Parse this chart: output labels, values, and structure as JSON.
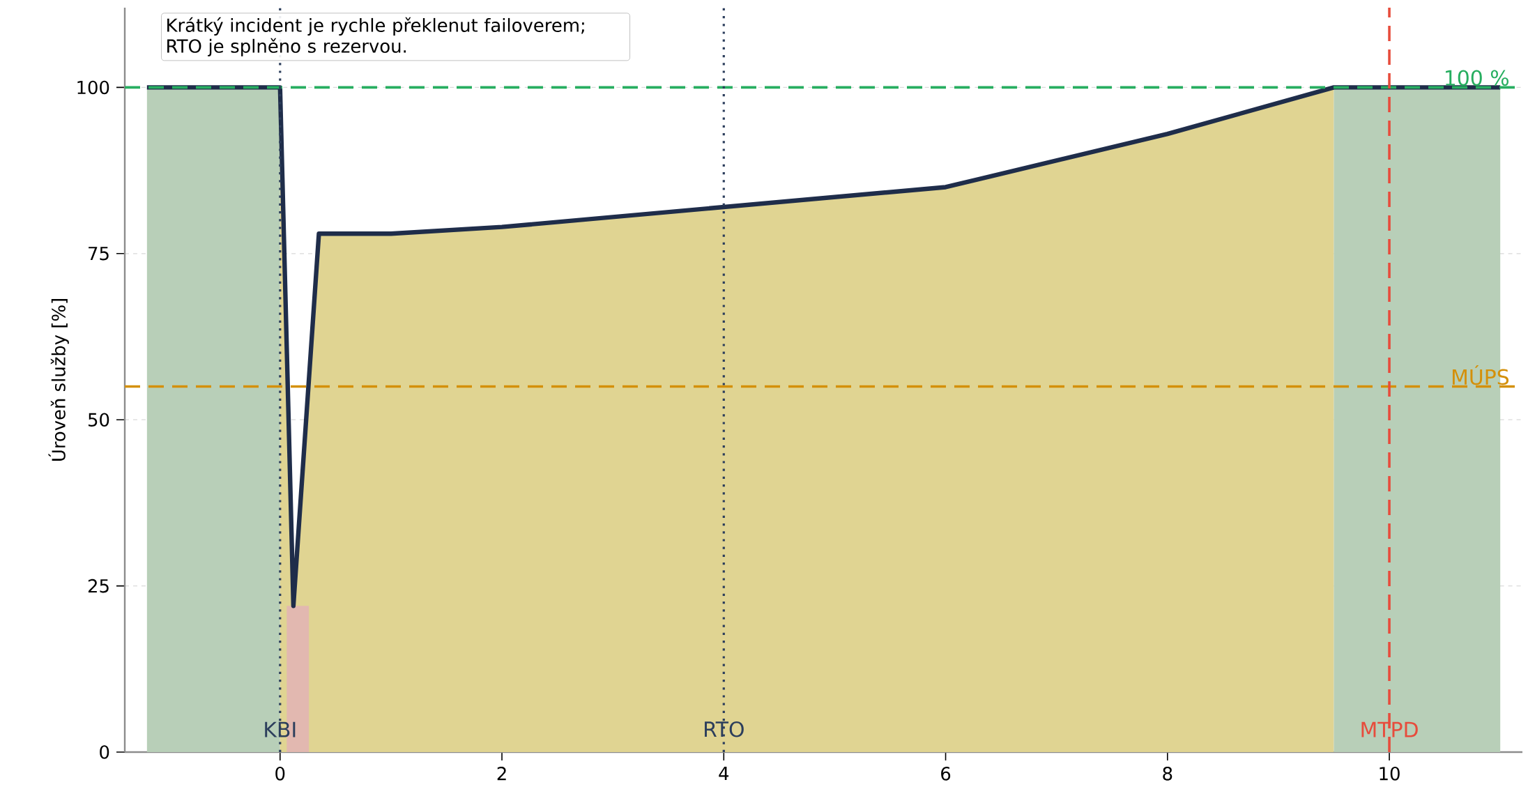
{
  "chart_data": {
    "type": "line",
    "ylabel": "Úroveň služby [%]",
    "xlim": [
      -1.4,
      11.2
    ],
    "ylim": [
      0,
      112
    ],
    "xticks": [
      0,
      2,
      4,
      6,
      8,
      10
    ],
    "yticks": [
      0,
      25,
      50,
      75,
      100
    ],
    "grid": "y",
    "series": [
      {
        "type": "area",
        "color": "#b8cfb8",
        "x": [
          -1.2,
          0
        ],
        "values": [
          100,
          100
        ]
      },
      {
        "type": "area",
        "color": "#e0d492",
        "x": [
          0,
          0.12,
          0.35,
          1,
          2,
          4,
          6,
          8,
          9.5
        ],
        "values": [
          100,
          22,
          78,
          78,
          79,
          82,
          85,
          93,
          100
        ]
      },
      {
        "type": "area",
        "color": "#e2b8b0",
        "x": [
          0.06,
          0.26
        ],
        "values": [
          22,
          22
        ]
      },
      {
        "type": "area",
        "color": "#b8cfb8",
        "x": [
          9.5,
          11
        ],
        "values": [
          100,
          100
        ]
      },
      {
        "color": "#1f2d4a",
        "x": [
          -1.2,
          0,
          0.12,
          0.35,
          1,
          2,
          4,
          6,
          8,
          9.5,
          11
        ],
        "values": [
          100,
          100,
          22,
          78,
          78,
          79,
          82,
          85,
          93,
          100,
          100
        ]
      }
    ],
    "ref_lines": [
      {
        "axis": "y",
        "value": 100,
        "label": "100 %",
        "color": "#27ae60",
        "line_style": "dashed"
      },
      {
        "axis": "y",
        "value": 55,
        "label": "MÚPS",
        "color": "#d4900a",
        "line_style": "dashed"
      },
      {
        "axis": "x",
        "value": 0,
        "label": "KBI",
        "color": "#2c3e5c",
        "line_style": "dotted"
      },
      {
        "axis": "x",
        "value": 4,
        "label": "RTO",
        "color": "#2c3e5c",
        "line_style": "dotted"
      },
      {
        "axis": "x",
        "value": 10,
        "label": "MTPD",
        "color": "#e74c3c",
        "line_style": "dashed"
      }
    ],
    "annotations": [
      "Krátký incident je rychle překlenut failoverem; RTO je splněno s rezervou."
    ]
  }
}
